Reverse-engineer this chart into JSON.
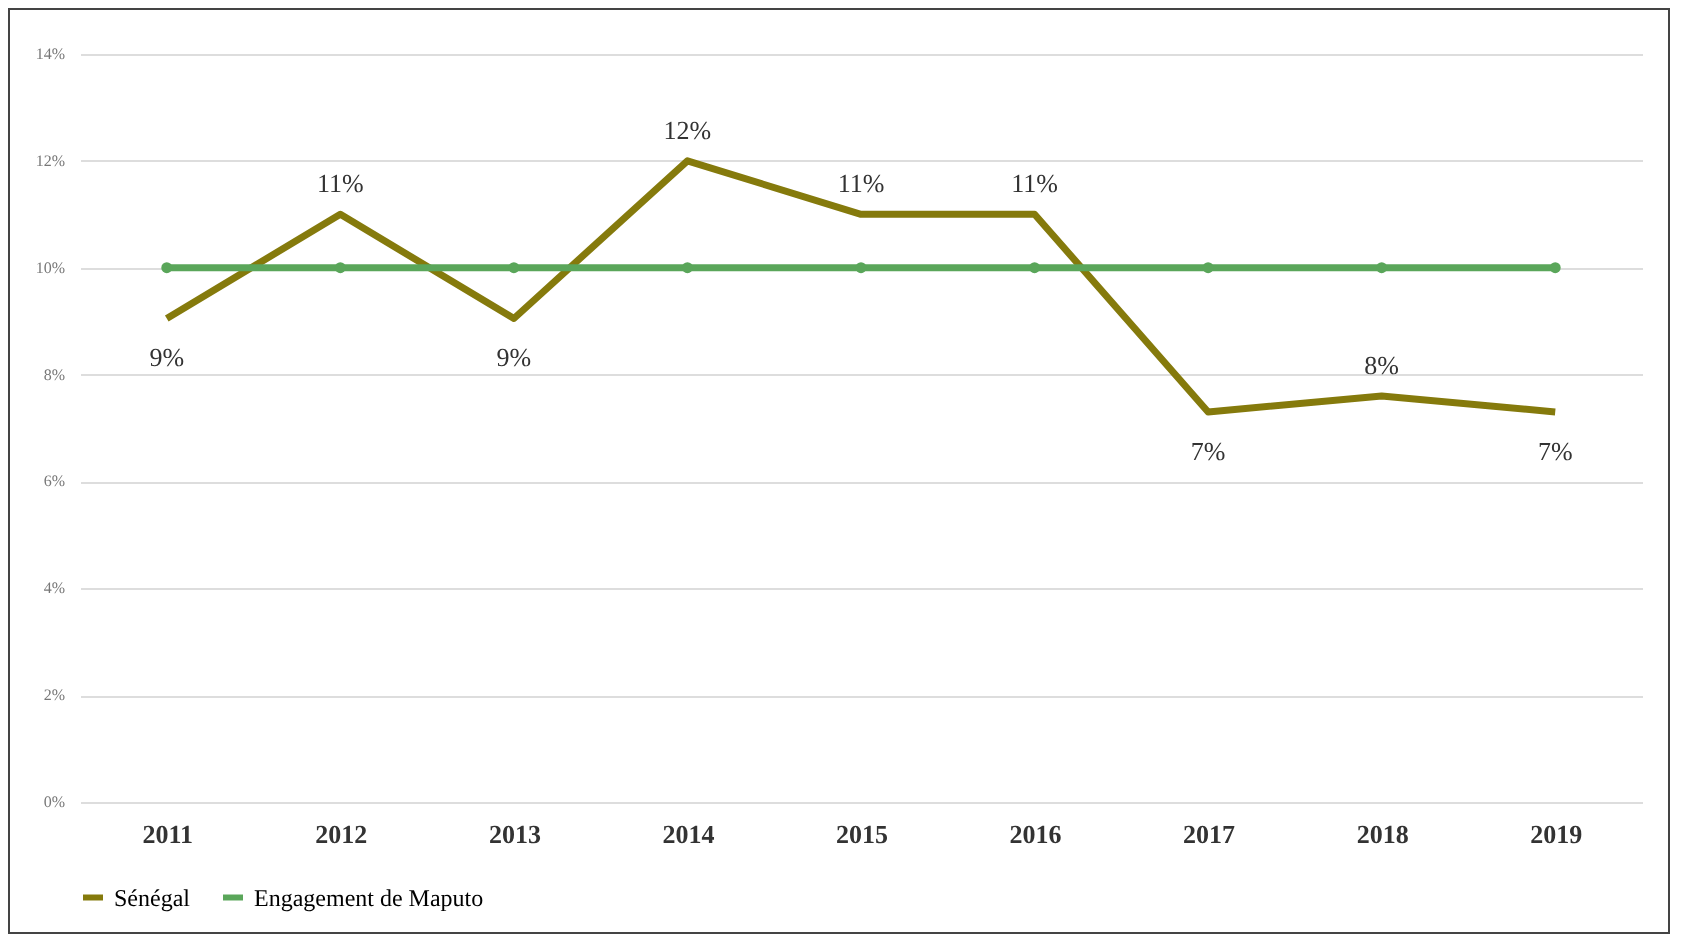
{
  "chart_data": {
    "type": "line",
    "categories": [
      "2011",
      "2012",
      "2013",
      "2014",
      "2015",
      "2016",
      "2017",
      "2018",
      "2019"
    ],
    "series": [
      {
        "name": "Sénégal",
        "color": "#857a0c",
        "values": [
          9.05,
          11,
          9.05,
          12,
          11,
          11,
          7.3,
          7.6,
          7.3
        ],
        "value_labels": [
          "9%",
          "11%",
          "9%",
          "12%",
          "11%",
          "11%",
          "7%",
          "8%",
          "7%"
        ]
      },
      {
        "name": "Engagement de Maputo",
        "color": "#5aa65a",
        "marker": "circle",
        "values": [
          10,
          10,
          10,
          10,
          10,
          10,
          10,
          10,
          10
        ]
      }
    ],
    "ylim": [
      0,
      14
    ],
    "yticks": [
      {
        "value": 0,
        "label": "0%"
      },
      {
        "value": 2,
        "label": "2%"
      },
      {
        "value": 4,
        "label": "4%"
      },
      {
        "value": 6,
        "label": "6%"
      },
      {
        "value": 8,
        "label": "8%"
      },
      {
        "value": 10,
        "label": "10%"
      },
      {
        "value": 12,
        "label": "12%"
      },
      {
        "value": 14,
        "label": "14%"
      }
    ],
    "grid": "y",
    "legend": "bottom"
  }
}
